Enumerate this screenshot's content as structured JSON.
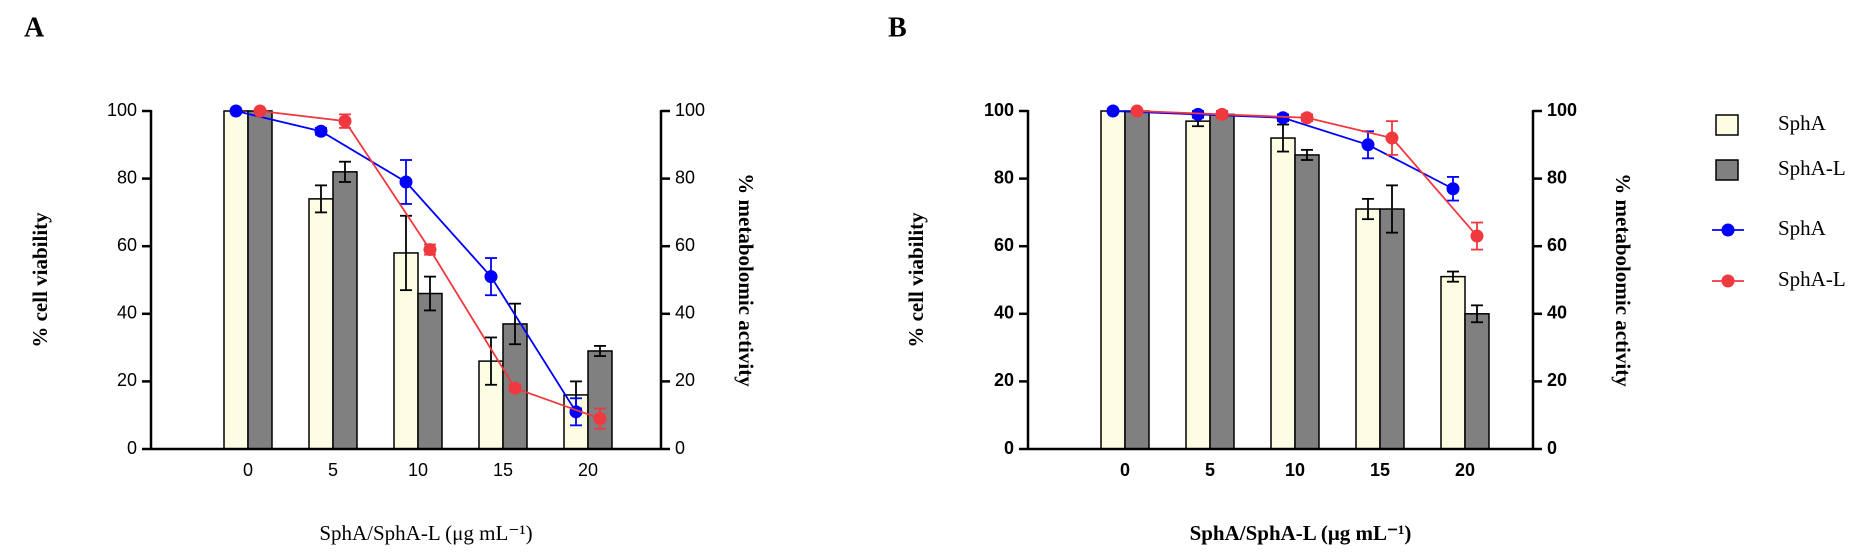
{
  "chart_data": [
    {
      "type": "combo",
      "panel_label": "A",
      "bold_ticks": false,
      "xlabel": "SphA/SphA-L (μg mL⁻¹)",
      "ylabel": "% cell viability",
      "y2label": "% metabolomic activity",
      "categories": [
        "0",
        "5",
        "10",
        "15",
        "20"
      ],
      "ylim": [
        0,
        100
      ],
      "yticks": [
        0,
        20,
        40,
        60,
        80,
        100
      ],
      "y2lim": [
        0,
        100
      ],
      "y2ticks": [
        0,
        20,
        40,
        60,
        80,
        100
      ],
      "series": [
        {
          "name": "SphA",
          "type": "bar",
          "color": "#fdfde3",
          "values": [
            100,
            74,
            58,
            26,
            16
          ],
          "errors": [
            0,
            4,
            11,
            7,
            4
          ]
        },
        {
          "name": "SphA-L",
          "type": "bar",
          "color": "#808080",
          "values": [
            100,
            82,
            46,
            37,
            29
          ],
          "errors": [
            0,
            3,
            5,
            6,
            1.5
          ]
        },
        {
          "name": "SphA",
          "type": "line",
          "axis": "y2",
          "color": "#0000ff",
          "values": [
            100,
            94,
            79,
            51,
            11
          ],
          "errors": [
            0,
            1,
            6.5,
            5.5,
            4
          ]
        },
        {
          "name": "SphA-L",
          "type": "line",
          "axis": "y2",
          "color": "#f0393f",
          "values": [
            100,
            97,
            59,
            18,
            9
          ],
          "errors": [
            0,
            2,
            1.5,
            1,
            3
          ]
        }
      ]
    },
    {
      "type": "combo",
      "panel_label": "B",
      "bold_ticks": true,
      "legend": "right",
      "xlabel": "SphA/SphA-L (μg mL⁻¹)",
      "ylabel": "% cell viability",
      "y2label": "% metabolomic activity",
      "categories": [
        "0",
        "5",
        "10",
        "15",
        "20"
      ],
      "ylim": [
        0,
        100
      ],
      "yticks": [
        0,
        20,
        40,
        60,
        80,
        100
      ],
      "y2lim": [
        0,
        100
      ],
      "y2ticks": [
        0,
        20,
        40,
        60,
        80,
        100
      ],
      "series": [
        {
          "name": "SphA",
          "type": "bar",
          "color": "#fdfde3",
          "values": [
            100,
            97,
            92,
            71,
            51
          ],
          "errors": [
            0,
            1.5,
            4,
            3,
            1.5
          ]
        },
        {
          "name": "SphA-L",
          "type": "bar",
          "color": "#808080",
          "values": [
            100,
            99,
            87,
            71,
            40
          ],
          "errors": [
            0,
            1,
            1.5,
            7,
            2.5
          ]
        },
        {
          "name": "SphA",
          "type": "line",
          "axis": "y2",
          "color": "#0000ff",
          "values": [
            100,
            99,
            98,
            90,
            77
          ],
          "errors": [
            0,
            1,
            1,
            4,
            3.5
          ]
        },
        {
          "name": "SphA-L",
          "type": "line",
          "axis": "y2",
          "color": "#f0393f",
          "values": [
            100,
            99,
            98,
            92,
            63
          ],
          "errors": [
            0,
            1,
            1,
            5,
            4
          ]
        }
      ]
    }
  ]
}
